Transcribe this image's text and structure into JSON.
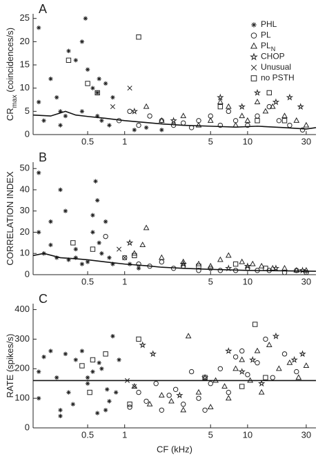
{
  "chart_data": [
    {
      "type": "scatter",
      "panel_label": "A",
      "ylabel_parts": [
        {
          "text": "CR"
        },
        {
          "text": "max",
          "sub": true
        },
        {
          "text": " (coincidences/s)"
        }
      ],
      "log_x": true,
      "xlim": [
        0.18,
        36
      ],
      "xticks": [
        0.5,
        1,
        5,
        10,
        30
      ],
      "ylim": [
        0,
        26
      ],
      "yticks": [
        0,
        5,
        10,
        15,
        20,
        25
      ],
      "legend": "upper right",
      "series": [
        {
          "name": "PHL",
          "marker": "asterisk",
          "color": "#222",
          "x": [
            0.2,
            0.22,
            0.25,
            0.28,
            0.3,
            0.33,
            0.35,
            0.4,
            0.45,
            0.48,
            0.5,
            0.55,
            0.6,
            0.62,
            0.65,
            0.7,
            0.75,
            0.8,
            1.2,
            1.5,
            2,
            0.2,
            0.3,
            0.45,
            0.6
          ],
          "values": [
            23,
            3,
            12,
            8,
            2,
            4,
            18,
            16,
            5,
            25,
            14,
            10,
            4,
            12,
            3,
            11,
            2,
            8,
            1,
            1.5,
            1,
            7,
            5,
            20,
            9
          ]
        },
        {
          "name": "PL",
          "marker": "circle",
          "color": "#222",
          "x": [
            0.9,
            1.1,
            1.3,
            1.6,
            2,
            2.5,
            3,
            3.5,
            4,
            5,
            6,
            7,
            8,
            10,
            12,
            15,
            18,
            22,
            28
          ],
          "values": [
            3,
            5,
            2,
            4,
            3,
            2,
            2.5,
            1.5,
            3,
            4,
            2,
            5,
            3,
            2,
            4,
            6,
            3,
            2,
            1
          ]
        },
        {
          "name": "PL",
          "name_subscript": "N",
          "marker": "triangle",
          "color": "#222",
          "x": [
            1.5,
            2,
            3,
            4,
            5,
            6,
            7,
            8,
            9,
            10,
            12,
            14,
            16,
            20,
            25,
            30
          ],
          "values": [
            6,
            3,
            4,
            2,
            3,
            7,
            6,
            2,
            4,
            3,
            7,
            5,
            6,
            4,
            3,
            2
          ]
        },
        {
          "name": "CHOP",
          "marker": "star",
          "color": "#222",
          "x": [
            1.2,
            2.5,
            6,
            9,
            12,
            17,
            22,
            27
          ],
          "values": [
            5,
            3,
            8,
            6,
            9,
            7,
            8,
            6
          ]
        },
        {
          "name": "Unusual",
          "marker": "x",
          "color": "#222",
          "x": [
            1.1,
            0.8
          ],
          "values": [
            10,
            6
          ]
        },
        {
          "name": "no PSTH",
          "marker": "square",
          "color": "#222",
          "x": [
            0.35,
            0.5,
            0.6,
            1.3,
            6,
            12,
            15,
            20
          ],
          "values": [
            16,
            11,
            9,
            21,
            6,
            3,
            9,
            3
          ]
        }
      ],
      "trend": {
        "x": [
          0.18,
          0.25,
          0.33,
          0.4,
          0.5,
          0.7,
          1,
          2,
          3,
          5,
          8,
          12,
          20,
          30,
          36
        ],
        "values": [
          4.2,
          4,
          5,
          4.2,
          3.9,
          3.5,
          3,
          2.3,
          2,
          1.8,
          1.6,
          1.8,
          1.5,
          1.2,
          1.5
        ]
      }
    },
    {
      "type": "scatter",
      "panel_label": "B",
      "ylabel_parts": [
        {
          "text": "CORRELATION INDEX"
        }
      ],
      "log_x": true,
      "xlim": [
        0.18,
        36
      ],
      "xticks": [
        0.5,
        1,
        5,
        10,
        30
      ],
      "ylim": [
        0,
        53
      ],
      "yticks": [
        0,
        10,
        20,
        30,
        40,
        50
      ],
      "series": [
        {
          "marker": "asterisk",
          "color": "#222",
          "x": [
            0.2,
            0.2,
            0.22,
            0.25,
            0.28,
            0.3,
            0.33,
            0.35,
            0.4,
            0.45,
            0.5,
            0.55,
            0.58,
            0.6,
            0.62,
            0.65,
            0.7,
            0.75,
            0.8,
            1.1,
            1.3,
            0.25,
            0.4,
            0.55
          ],
          "values": [
            48,
            20,
            10,
            25,
            8,
            40,
            30,
            7,
            12,
            5,
            6,
            20,
            44,
            35,
            15,
            10,
            25,
            8,
            5,
            5,
            3,
            14,
            8,
            28
          ]
        },
        {
          "marker": "circle",
          "color": "#222",
          "x": [
            0.7,
            1,
            1.3,
            1.6,
            2,
            2.5,
            3,
            4,
            5,
            6,
            8,
            10,
            12,
            15,
            20,
            25,
            30
          ],
          "values": [
            18,
            8,
            5,
            4,
            6,
            3,
            4,
            2,
            3,
            2,
            2,
            3,
            2,
            2,
            1,
            2,
            1
          ]
        },
        {
          "marker": "triangle",
          "color": "#222",
          "x": [
            1.2,
            1.4,
            1.5,
            2,
            3,
            4,
            5,
            6,
            7,
            9,
            11,
            13,
            16,
            20,
            25,
            30
          ],
          "values": [
            10,
            14,
            22,
            8,
            6,
            5,
            4,
            7,
            9,
            6,
            5,
            4,
            3,
            3,
            2,
            2
          ]
        },
        {
          "marker": "star",
          "color": "#222",
          "x": [
            1.1,
            3,
            7,
            10,
            17,
            28
          ],
          "values": [
            15,
            5,
            3,
            4,
            3,
            2
          ]
        },
        {
          "marker": "x",
          "color": "#222",
          "x": [
            0.9,
            1.0
          ],
          "values": [
            12,
            8
          ]
        },
        {
          "marker": "square",
          "color": "#222",
          "x": [
            0.38,
            0.55,
            1.2,
            4,
            8,
            14
          ],
          "values": [
            15,
            12,
            9,
            4,
            5,
            3
          ]
        }
      ],
      "trend": {
        "x": [
          0.18,
          0.22,
          0.3,
          0.4,
          0.5,
          0.7,
          1,
          1.5,
          2,
          3,
          5,
          10,
          20,
          36
        ],
        "values": [
          9,
          10,
          8,
          7.5,
          7,
          6,
          5,
          4.2,
          3.5,
          3,
          2.5,
          2,
          1.8,
          1.6
        ]
      }
    },
    {
      "type": "scatter",
      "panel_label": "C",
      "ylabel_parts": [
        {
          "text": "RATE (spikes/s)"
        }
      ],
      "xlabel": "CF (kHz)",
      "log_x": true,
      "xlim": [
        0.18,
        36
      ],
      "xticks": [
        0.5,
        1,
        5,
        10,
        30
      ],
      "ylim": [
        0,
        420
      ],
      "yticks": [
        0,
        100,
        200,
        300,
        400
      ],
      "series": [
        {
          "marker": "asterisk",
          "color": "#222",
          "x": [
            0.2,
            0.22,
            0.25,
            0.28,
            0.3,
            0.33,
            0.35,
            0.38,
            0.4,
            0.45,
            0.5,
            0.55,
            0.6,
            0.65,
            0.7,
            0.75,
            0.8,
            0.85,
            0.9,
            0.2,
            0.3,
            0.5,
            0.62,
            0.72
          ],
          "values": [
            100,
            240,
            260,
            170,
            60,
            250,
            120,
            80,
            230,
            260,
            150,
            190,
            50,
            200,
            60,
            90,
            310,
            120,
            230,
            190,
            40,
            170,
            220,
            130
          ]
        },
        {
          "marker": "circle",
          "color": "#222",
          "x": [
            1.1,
            1.3,
            1.5,
            1.8,
            2,
            2.3,
            2.6,
            3,
            3.5,
            4,
            4.5,
            5,
            6,
            7,
            8,
            9,
            10,
            12,
            14,
            16,
            20,
            25
          ],
          "values": [
            70,
            120,
            90,
            150,
            60,
            110,
            130,
            80,
            190,
            100,
            60,
            150,
            200,
            120,
            240,
            260,
            180,
            220,
            300,
            170,
            250,
            190
          ]
        },
        {
          "marker": "triangle",
          "color": "#222",
          "x": [
            1.2,
            1.6,
            2,
            2.4,
            3,
            3.3,
            4,
            5,
            5.5,
            6.5,
            7,
            8,
            9,
            10.5,
            12,
            13,
            15,
            18,
            22,
            26,
            30
          ],
          "values": [
            140,
            80,
            110,
            90,
            60,
            310,
            120,
            70,
            160,
            140,
            100,
            200,
            230,
            160,
            260,
            120,
            280,
            200,
            220,
            170,
            210
          ]
        },
        {
          "marker": "star",
          "color": "#222",
          "x": [
            1.4,
            1.7,
            2.8,
            4.5,
            7,
            9,
            11,
            13,
            17,
            24,
            28
          ],
          "values": [
            280,
            250,
            110,
            170,
            260,
            190,
            230,
            150,
            310,
            230,
            250
          ]
        },
        {
          "marker": "x",
          "color": "#222",
          "x": [
            1.05,
            1.2
          ],
          "values": [
            160,
            140
          ]
        },
        {
          "marker": "square",
          "color": "#222",
          "x": [
            0.45,
            0.52,
            0.55,
            0.7,
            1.1,
            1.3,
            4.5,
            9,
            11.5,
            14
          ],
          "values": [
            210,
            120,
            230,
            250,
            80,
            300,
            170,
            140,
            350,
            170
          ]
        }
      ],
      "trend": {
        "x": [
          0.18,
          36
        ],
        "values": [
          160,
          160
        ]
      }
    }
  ]
}
